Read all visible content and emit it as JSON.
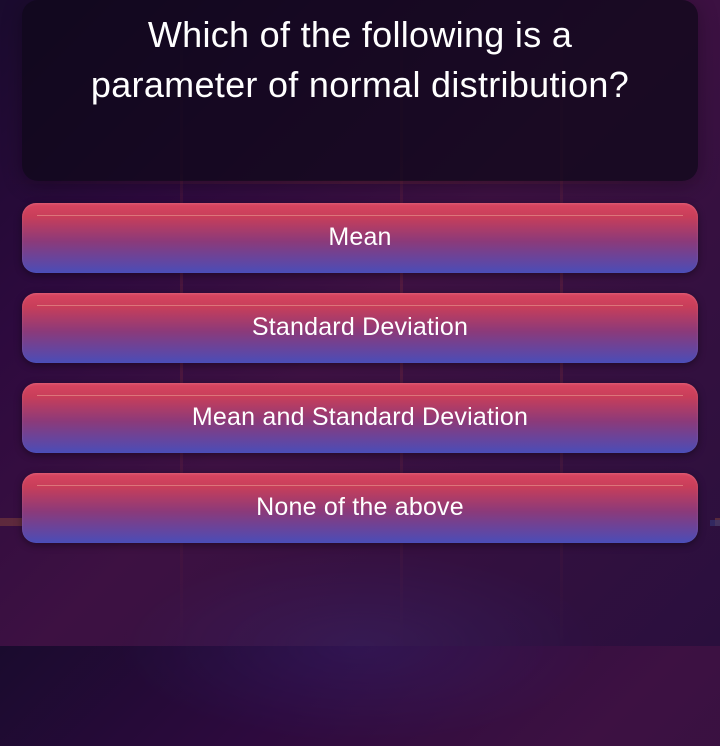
{
  "question": {
    "text": "Which of the following is a parameter of normal distribution?"
  },
  "answers": [
    {
      "label": "Mean"
    },
    {
      "label": "Standard Deviation"
    },
    {
      "label": "Mean and Standard Deviation"
    },
    {
      "label": "None of the above"
    }
  ],
  "style": {
    "text_color": "#ffffff",
    "question_fontsize": 36,
    "answer_fontsize": 25,
    "button_gradient_top": "#d94560",
    "button_gradient_mid": "#8b3a7a",
    "button_gradient_bottom": "#4a4db8",
    "card_bg": "rgba(15,8,25,0.75)",
    "border_radius": 14
  }
}
